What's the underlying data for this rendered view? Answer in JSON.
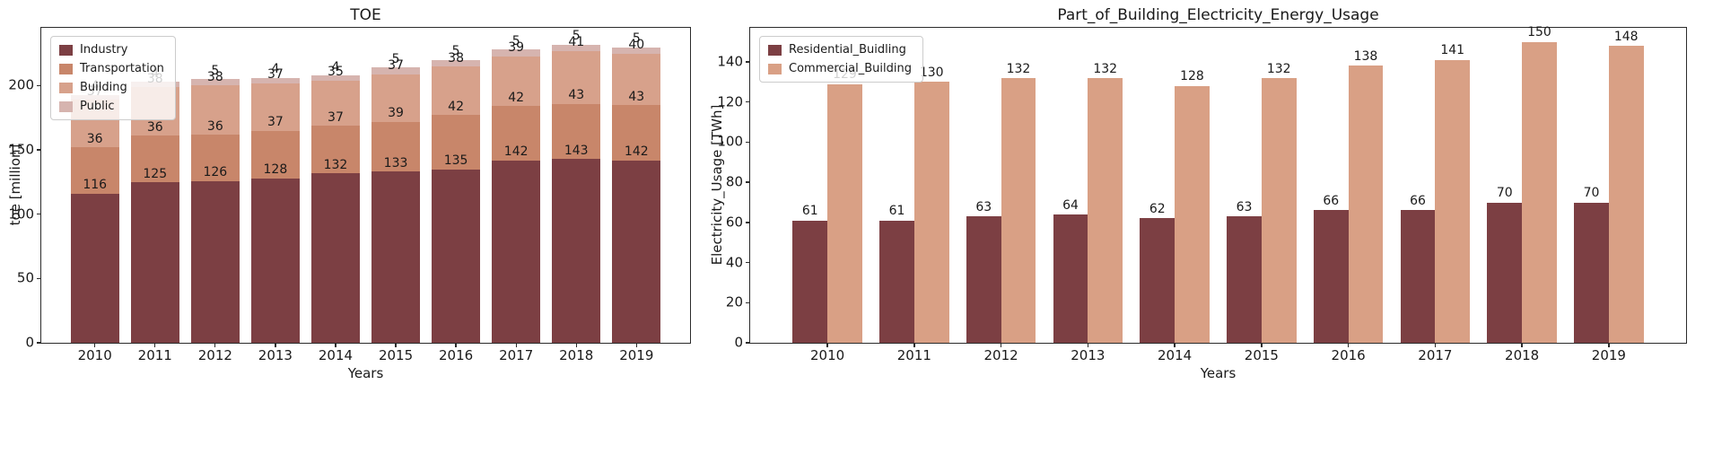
{
  "figure": {
    "background": "#ffffff",
    "axis_color": "#2b2b2b",
    "text_color": "#1a1a1a"
  },
  "chart_data": [
    {
      "type": "bar",
      "variant": "stacked",
      "title": "TOE",
      "xlabel": "Years",
      "ylabel": "toe [million]",
      "ylim": [
        0,
        245
      ],
      "yticks": [
        0,
        50,
        100,
        150,
        200
      ],
      "grid": false,
      "legend_position": "upper-left",
      "categories": [
        "2010",
        "2011",
        "2012",
        "2013",
        "2014",
        "2015",
        "2016",
        "2017",
        "2018",
        "2019"
      ],
      "series": [
        {
          "name": "Industry",
          "color": "#7c3f43",
          "values": [
            116,
            125,
            126,
            128,
            132,
            133,
            135,
            142,
            143,
            142
          ]
        },
        {
          "name": "Transportation",
          "color": "#c8866a",
          "values": [
            36,
            36,
            36,
            37,
            37,
            39,
            42,
            42,
            43,
            43
          ]
        },
        {
          "name": "Building",
          "color": "#d7a18b",
          "values": [
            37,
            38,
            38,
            37,
            35,
            37,
            38,
            39,
            41,
            40
          ]
        },
        {
          "name": "Public",
          "color": "#d6b4af",
          "values": [
            4,
            4,
            5,
            4,
            4,
            5,
            5,
            5,
            5,
            5
          ]
        }
      ]
    },
    {
      "type": "bar",
      "variant": "grouped",
      "title": "Part_of_Building_Electricity_Energy_Usage",
      "xlabel": "Years",
      "ylabel": "Electricity_Usage [TWh]",
      "ylim": [
        0,
        157
      ],
      "yticks": [
        0,
        20,
        40,
        60,
        80,
        100,
        120,
        140
      ],
      "grid": false,
      "legend_position": "upper-left",
      "categories": [
        "2010",
        "2011",
        "2012",
        "2013",
        "2014",
        "2015",
        "2016",
        "2017",
        "2018",
        "2019"
      ],
      "series": [
        {
          "name": "Residential_Buidling",
          "color": "#7c3f43",
          "values": [
            61,
            61,
            63,
            64,
            62,
            63,
            66,
            66,
            70,
            70
          ]
        },
        {
          "name": "Commercial_Building",
          "color": "#d9a085",
          "values": [
            129,
            130,
            132,
            132,
            128,
            132,
            138,
            141,
            150,
            148
          ]
        }
      ]
    }
  ]
}
